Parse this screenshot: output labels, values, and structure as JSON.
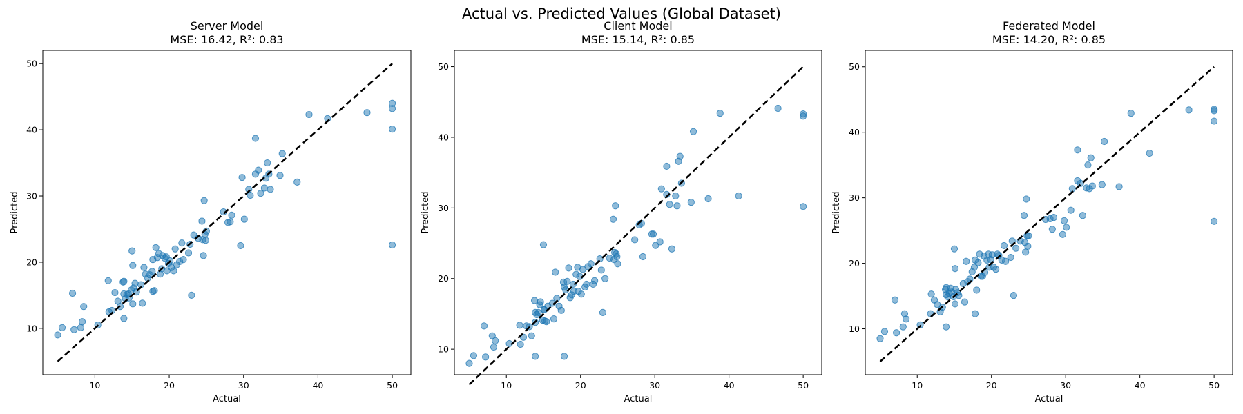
{
  "figure": {
    "suptitle": "Actual vs. Predicted Values (Global Dataset)"
  },
  "colors": {
    "point": "#1f77b4",
    "identity_line": "#000000"
  },
  "chart_data": [
    {
      "type": "scatter",
      "title": "Server Model",
      "subtitle": "MSE: 16.42, R²: 0.83",
      "xlabel": "Actual",
      "ylabel": "Predicted",
      "xlim": [
        3,
        52.5
      ],
      "ylim": [
        3,
        52
      ],
      "xticks": [
        10,
        20,
        30,
        40,
        50
      ],
      "yticks": [
        10,
        20,
        30,
        40,
        50
      ],
      "grid": false,
      "reference_line": {
        "style": "dashed",
        "from": [
          5,
          5
        ],
        "to": [
          50,
          50
        ]
      },
      "points": [
        [
          5,
          9
        ],
        [
          5.6,
          10.1
        ],
        [
          7,
          15.3
        ],
        [
          7.2,
          9.8
        ],
        [
          8.1,
          10.1
        ],
        [
          8.3,
          11
        ],
        [
          8.5,
          13.3
        ],
        [
          10.4,
          10.5
        ],
        [
          11.8,
          17.2
        ],
        [
          11.9,
          12.5
        ],
        [
          12.3,
          12.7
        ],
        [
          12.7,
          15.4
        ],
        [
          13.1,
          14.1
        ],
        [
          13.4,
          13.3
        ],
        [
          13.8,
          17
        ],
        [
          13.9,
          17.1
        ],
        [
          13.9,
          15.2
        ],
        [
          13.9,
          11.5
        ],
        [
          14.1,
          14.5
        ],
        [
          14.3,
          15.1
        ],
        [
          14.5,
          15.2
        ],
        [
          14.6,
          14.6
        ],
        [
          14.9,
          15.8
        ],
        [
          15,
          21.7
        ],
        [
          15.1,
          19.5
        ],
        [
          15.1,
          13.7
        ],
        [
          15.2,
          16.1
        ],
        [
          15.4,
          16.8
        ],
        [
          15.6,
          15.5
        ],
        [
          16.2,
          16.6
        ],
        [
          16.4,
          13.8
        ],
        [
          16.6,
          19.2
        ],
        [
          16.8,
          18.2
        ],
        [
          17.1,
          17.6
        ],
        [
          17.4,
          18.1
        ],
        [
          17.7,
          18.6
        ],
        [
          17.8,
          20.4
        ],
        [
          17.8,
          15.6
        ],
        [
          18,
          15.7
        ],
        [
          18.2,
          22.2
        ],
        [
          18.4,
          20.7
        ],
        [
          18.6,
          21.3
        ],
        [
          18.8,
          18.2
        ],
        [
          19,
          19
        ],
        [
          19.1,
          21
        ],
        [
          19.4,
          20.6
        ],
        [
          19.6,
          20.8
        ],
        [
          19.7,
          18.7
        ],
        [
          19.9,
          19.8
        ],
        [
          20.1,
          20.2
        ],
        [
          20.3,
          19.2
        ],
        [
          20.6,
          18.7
        ],
        [
          20.8,
          22
        ],
        [
          21,
          19.6
        ],
        [
          21.4,
          20.1
        ],
        [
          21.7,
          22.9
        ],
        [
          21.9,
          20.4
        ],
        [
          22.6,
          21.4
        ],
        [
          22.8,
          22.7
        ],
        [
          23,
          15
        ],
        [
          23.3,
          24.1
        ],
        [
          23.9,
          23.6
        ],
        [
          24.4,
          26.2
        ],
        [
          24.5,
          23.4
        ],
        [
          24.6,
          21
        ],
        [
          24.7,
          29.3
        ],
        [
          24.8,
          24.2
        ],
        [
          24.9,
          23.3
        ],
        [
          25,
          24.7
        ],
        [
          27.3,
          27.6
        ],
        [
          27.9,
          26
        ],
        [
          28.2,
          26.1
        ],
        [
          28.4,
          27.1
        ],
        [
          29.6,
          22.5
        ],
        [
          29.8,
          32.8
        ],
        [
          30.1,
          26.5
        ],
        [
          30.7,
          31
        ],
        [
          30.9,
          30.1
        ],
        [
          31.6,
          38.7
        ],
        [
          31.6,
          33.3
        ],
        [
          32,
          33.9
        ],
        [
          32.3,
          30.4
        ],
        [
          32.8,
          31.2
        ],
        [
          33,
          32.7
        ],
        [
          33.2,
          35
        ],
        [
          33.4,
          33.3
        ],
        [
          33.6,
          31
        ],
        [
          34.9,
          33.1
        ],
        [
          35.2,
          36.4
        ],
        [
          37.2,
          32.1
        ],
        [
          38.8,
          42.3
        ],
        [
          41.3,
          41.7
        ],
        [
          46.6,
          42.6
        ],
        [
          50,
          22.6
        ],
        [
          50,
          40.1
        ],
        [
          50,
          43.2
        ],
        [
          50,
          44
        ]
      ]
    },
    {
      "type": "scatter",
      "title": "Client Model",
      "subtitle": "MSE: 15.14, R²: 0.85",
      "xlabel": "Actual",
      "ylabel": "Predicted",
      "xlim": [
        3,
        52.5
      ],
      "ylim": [
        6.4,
        52.3
      ],
      "xticks": [
        10,
        20,
        30,
        40,
        50
      ],
      "yticks": [
        10,
        20,
        30,
        40,
        50
      ],
      "grid": false,
      "reference_line": {
        "style": "dashed",
        "from": [
          5,
          5
        ],
        "to": [
          50,
          50
        ]
      },
      "points": [
        [
          5,
          8
        ],
        [
          5.6,
          9.1
        ],
        [
          7,
          13.3
        ],
        [
          7.2,
          8.9
        ],
        [
          8.1,
          11.9
        ],
        [
          8.3,
          10.3
        ],
        [
          8.5,
          11.2
        ],
        [
          10.4,
          10.8
        ],
        [
          11.8,
          13.4
        ],
        [
          11.9,
          10.7
        ],
        [
          12.3,
          11.7
        ],
        [
          12.7,
          13.3
        ],
        [
          13.1,
          13.2
        ],
        [
          13.4,
          11.9
        ],
        [
          13.8,
          16.9
        ],
        [
          13.9,
          15.2
        ],
        [
          13.9,
          13.8
        ],
        [
          13.9,
          9
        ],
        [
          14.1,
          14.9
        ],
        [
          14.3,
          15.2
        ],
        [
          14.5,
          16.3
        ],
        [
          14.6,
          16.7
        ],
        [
          14.9,
          14.1
        ],
        [
          15,
          24.8
        ],
        [
          15.1,
          15.6
        ],
        [
          15.1,
          15.6
        ],
        [
          15.2,
          14
        ],
        [
          15.4,
          13.9
        ],
        [
          15.6,
          16.1
        ],
        [
          16.2,
          16.5
        ],
        [
          16.4,
          14.3
        ],
        [
          16.6,
          20.9
        ],
        [
          16.8,
          17.2
        ],
        [
          17.1,
          16.1
        ],
        [
          17.4,
          15.5
        ],
        [
          17.7,
          19.5
        ],
        [
          17.8,
          18.8
        ],
        [
          17.8,
          9
        ],
        [
          18,
          18.4
        ],
        [
          18.2,
          19.6
        ],
        [
          18.4,
          21.5
        ],
        [
          18.6,
          17.3
        ],
        [
          18.8,
          17.7
        ],
        [
          19,
          19.2
        ],
        [
          19.1,
          18.2
        ],
        [
          19.4,
          20.6
        ],
        [
          19.6,
          21.6
        ],
        [
          19.7,
          18.2
        ],
        [
          19.9,
          20.3
        ],
        [
          20.1,
          17.8
        ],
        [
          20.3,
          21.3
        ],
        [
          20.6,
          18.8
        ],
        [
          20.8,
          19.2
        ],
        [
          21,
          21.7
        ],
        [
          21.4,
          22.1
        ],
        [
          21.7,
          19.2
        ],
        [
          21.9,
          19.7
        ],
        [
          22.6,
          22.8
        ],
        [
          22.8,
          21.2
        ],
        [
          23,
          15.2
        ],
        [
          23.3,
          20
        ],
        [
          23.9,
          22.9
        ],
        [
          24.4,
          28.4
        ],
        [
          24.5,
          22.7
        ],
        [
          24.6,
          23.7
        ],
        [
          24.7,
          30.3
        ],
        [
          24.8,
          23.5
        ],
        [
          24.9,
          23.1
        ],
        [
          25,
          22.1
        ],
        [
          27.3,
          25.5
        ],
        [
          27.9,
          27.6
        ],
        [
          28.2,
          27.8
        ],
        [
          28.4,
          23.1
        ],
        [
          29.6,
          26.3
        ],
        [
          29.8,
          26.3
        ],
        [
          30.1,
          24.7
        ],
        [
          30.7,
          25.2
        ],
        [
          30.9,
          32.7
        ],
        [
          31.6,
          35.9
        ],
        [
          31.6,
          31.9
        ],
        [
          32,
          30.5
        ],
        [
          32.3,
          24.2
        ],
        [
          32.8,
          31.7
        ],
        [
          33,
          30.3
        ],
        [
          33.2,
          36.6
        ],
        [
          33.4,
          37.3
        ],
        [
          33.6,
          33.5
        ],
        [
          34.9,
          30.8
        ],
        [
          35.2,
          40.8
        ],
        [
          37.2,
          31.3
        ],
        [
          38.8,
          43.4
        ],
        [
          41.3,
          31.7
        ],
        [
          46.6,
          44.1
        ],
        [
          50,
          30.2
        ],
        [
          50,
          43
        ],
        [
          50,
          43.3
        ]
      ]
    },
    {
      "type": "scatter",
      "title": "Federated Model",
      "subtitle": "MSE: 14.20, R²: 0.85",
      "xlabel": "Actual",
      "ylabel": "Predicted",
      "xlim": [
        3,
        52.5
      ],
      "ylim": [
        3,
        52.5
      ],
      "xticks": [
        10,
        20,
        30,
        40,
        50
      ],
      "yticks": [
        10,
        20,
        30,
        40,
        50
      ],
      "grid": false,
      "reference_line": {
        "style": "dashed",
        "from": [
          5,
          5
        ],
        "to": [
          50,
          50
        ]
      },
      "points": [
        [
          5,
          8.5
        ],
        [
          5.6,
          9.6
        ],
        [
          7,
          14.4
        ],
        [
          7.2,
          9.4
        ],
        [
          8.1,
          10.3
        ],
        [
          8.3,
          12.3
        ],
        [
          8.5,
          11.5
        ],
        [
          10.4,
          10.6
        ],
        [
          11.8,
          12.3
        ],
        [
          11.9,
          15.3
        ],
        [
          12.3,
          14.4
        ],
        [
          12.7,
          13.7
        ],
        [
          13.1,
          12.6
        ],
        [
          13.4,
          13.3
        ],
        [
          13.8,
          16
        ],
        [
          13.9,
          16.3
        ],
        [
          13.9,
          15.2
        ],
        [
          13.9,
          10.3
        ],
        [
          14.1,
          14.9
        ],
        [
          14.3,
          15.4
        ],
        [
          14.5,
          16.2
        ],
        [
          14.6,
          15.6
        ],
        [
          14.9,
          14.9
        ],
        [
          15,
          22.2
        ],
        [
          15.1,
          19.2
        ],
        [
          15.1,
          13.8
        ],
        [
          15.2,
          16
        ],
        [
          15.4,
          15.5
        ],
        [
          15.6,
          15.1
        ],
        [
          16.2,
          16.9
        ],
        [
          16.4,
          14.1
        ],
        [
          16.6,
          20.3
        ],
        [
          16.8,
          17.2
        ],
        [
          17.1,
          17.6
        ],
        [
          17.4,
          18.7
        ],
        [
          17.7,
          19.4
        ],
        [
          17.8,
          20.5
        ],
        [
          17.8,
          12.3
        ],
        [
          18,
          15.9
        ],
        [
          18.2,
          20.1
        ],
        [
          18.4,
          21.4
        ],
        [
          18.6,
          18
        ],
        [
          18.8,
          18
        ],
        [
          19,
          21.1
        ],
        [
          19.1,
          18.6
        ],
        [
          19.4,
          20.5
        ],
        [
          19.6,
          21.4
        ],
        [
          19.7,
          19.4
        ],
        [
          19.9,
          20.6
        ],
        [
          20.1,
          21.3
        ],
        [
          20.3,
          19.4
        ],
        [
          20.6,
          19.1
        ],
        [
          20.8,
          21.4
        ],
        [
          21,
          21.2
        ],
        [
          21.4,
          20.5
        ],
        [
          21.7,
          22.7
        ],
        [
          21.9,
          20.3
        ],
        [
          22.6,
          20.9
        ],
        [
          22.8,
          23.4
        ],
        [
          23,
          15.1
        ],
        [
          23.3,
          22.3
        ],
        [
          23.9,
          23.4
        ],
        [
          24.4,
          27.3
        ],
        [
          24.5,
          23.2
        ],
        [
          24.6,
          21.7
        ],
        [
          24.7,
          29.8
        ],
        [
          24.8,
          24.2
        ],
        [
          24.9,
          22.6
        ],
        [
          25,
          24.2
        ],
        [
          27.3,
          26.7
        ],
        [
          27.9,
          26.8
        ],
        [
          28.2,
          25.2
        ],
        [
          28.4,
          27
        ],
        [
          29.6,
          24.4
        ],
        [
          29.8,
          26.5
        ],
        [
          30.1,
          25.5
        ],
        [
          30.7,
          28.1
        ],
        [
          30.9,
          31.4
        ],
        [
          31.6,
          37.3
        ],
        [
          31.6,
          32.6
        ],
        [
          32,
          32.2
        ],
        [
          32.3,
          27.3
        ],
        [
          32.8,
          31.5
        ],
        [
          33,
          35
        ],
        [
          33.2,
          31.4
        ],
        [
          33.4,
          36.1
        ],
        [
          33.6,
          31.8
        ],
        [
          34.9,
          32
        ],
        [
          35.2,
          38.6
        ],
        [
          37.2,
          31.7
        ],
        [
          38.8,
          42.9
        ],
        [
          41.3,
          36.8
        ],
        [
          46.6,
          43.4
        ],
        [
          50,
          26.4
        ],
        [
          50,
          41.7
        ],
        [
          50,
          43.3
        ],
        [
          50,
          43.5
        ]
      ]
    }
  ]
}
